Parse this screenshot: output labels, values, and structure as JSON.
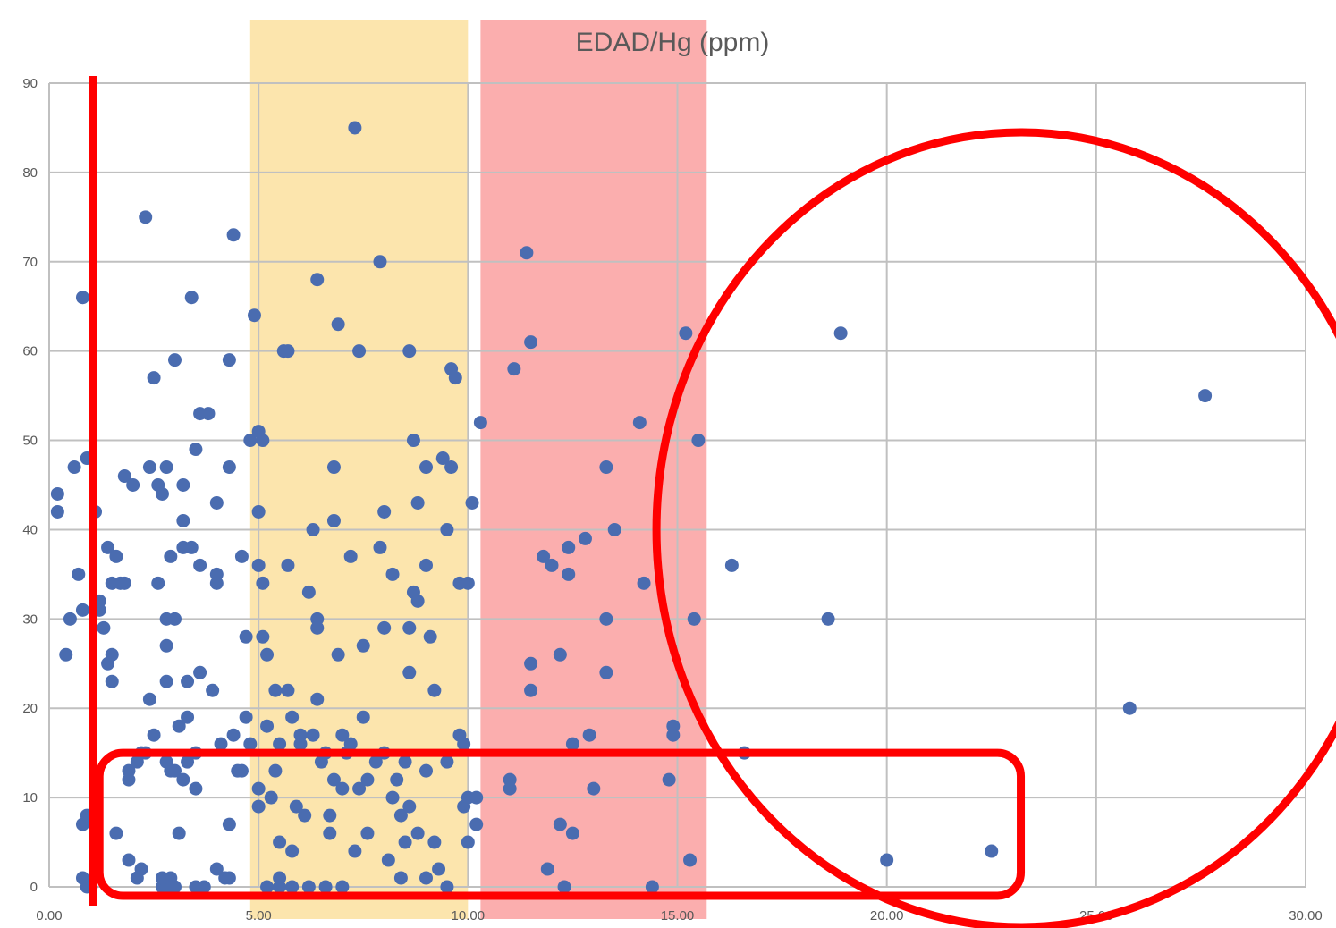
{
  "chart_data": {
    "type": "scatter",
    "title": "EDAD/Hg (ppm)",
    "xlabel": "",
    "ylabel": "",
    "xlim": [
      0,
      30
    ],
    "ylim": [
      0,
      90
    ],
    "x_ticks": [
      "0.00",
      "5.00",
      "10.00",
      "15.00",
      "20.00",
      "25.00",
      "30.00"
    ],
    "y_ticks": [
      "0",
      "10",
      "20",
      "30",
      "40",
      "50",
      "60",
      "70",
      "80",
      "90"
    ],
    "grid": true,
    "legend": "none",
    "colors": {
      "points": "#4a6cb0",
      "grid": "#c0c0c0",
      "band_5_10": "#fce5ad",
      "band_10_15": "#fbaeae",
      "annotation": "#ff0000"
    },
    "bands": [
      {
        "x_range": [
          4.8,
          10.0
        ],
        "color": "#fce5ad"
      },
      {
        "x_range": [
          10.3,
          15.7
        ],
        "color": "#fbaeae"
      }
    ],
    "annotations": [
      {
        "type": "vline",
        "x": 1.05
      },
      {
        "type": "rounded-rect",
        "x_range": [
          1.2,
          23.2
        ],
        "y_range": [
          -1,
          15
        ]
      },
      {
        "type": "ellipse",
        "x_center": 23.2,
        "y_center": 40,
        "x_radius": 8.7,
        "y_radius": 44.5
      }
    ],
    "series": [
      {
        "points": [
          [
            0.2,
            44
          ],
          [
            0.2,
            42
          ],
          [
            0.5,
            30
          ],
          [
            0.4,
            26
          ],
          [
            0.6,
            47
          ],
          [
            0.7,
            35
          ],
          [
            0.8,
            31
          ],
          [
            0.8,
            66
          ],
          [
            0.9,
            48
          ],
          [
            0.9,
            8
          ],
          [
            0.8,
            7
          ],
          [
            0.8,
            1
          ],
          [
            0.9,
            0
          ],
          [
            1.0,
            0
          ],
          [
            1.1,
            42
          ],
          [
            1.2,
            31
          ],
          [
            1.2,
            32
          ],
          [
            1.3,
            29
          ],
          [
            1.4,
            25
          ],
          [
            1.4,
            38
          ],
          [
            1.5,
            34
          ],
          [
            1.5,
            26
          ],
          [
            1.5,
            23
          ],
          [
            1.6,
            37
          ],
          [
            1.6,
            6
          ],
          [
            1.7,
            34
          ],
          [
            1.8,
            46
          ],
          [
            1.8,
            34
          ],
          [
            1.9,
            13
          ],
          [
            1.9,
            12
          ],
          [
            1.9,
            3
          ],
          [
            2.0,
            45
          ],
          [
            2.1,
            14
          ],
          [
            2.1,
            1
          ],
          [
            2.2,
            2
          ],
          [
            2.3,
            75
          ],
          [
            2.3,
            15
          ],
          [
            2.4,
            21
          ],
          [
            2.4,
            47
          ],
          [
            2.5,
            57
          ],
          [
            2.6,
            45
          ],
          [
            2.6,
            34
          ],
          [
            2.7,
            44
          ],
          [
            2.7,
            0
          ],
          [
            2.8,
            47
          ],
          [
            2.8,
            30
          ],
          [
            2.8,
            27
          ],
          [
            2.8,
            23
          ],
          [
            2.8,
            14
          ],
          [
            2.9,
            37
          ],
          [
            2.9,
            1
          ],
          [
            3.0,
            59
          ],
          [
            3.0,
            30
          ],
          [
            3.1,
            18
          ],
          [
            3.1,
            6
          ],
          [
            3.2,
            45
          ],
          [
            3.2,
            41
          ],
          [
            3.2,
            38
          ],
          [
            3.3,
            23
          ],
          [
            3.3,
            19
          ],
          [
            3.4,
            66
          ],
          [
            3.4,
            38
          ],
          [
            3.5,
            49
          ],
          [
            3.5,
            11
          ],
          [
            3.6,
            53
          ],
          [
            3.6,
            36
          ],
          [
            3.6,
            24
          ],
          [
            3.8,
            53
          ],
          [
            3.9,
            22
          ],
          [
            4.0,
            35
          ],
          [
            4.0,
            34
          ],
          [
            4.0,
            43
          ],
          [
            4.1,
            16
          ],
          [
            4.2,
            1
          ],
          [
            4.3,
            59
          ],
          [
            4.3,
            47
          ],
          [
            4.3,
            7
          ],
          [
            4.4,
            73
          ],
          [
            4.4,
            17
          ],
          [
            4.5,
            13
          ],
          [
            4.6,
            37
          ],
          [
            4.7,
            28
          ],
          [
            4.8,
            16
          ],
          [
            4.8,
            50
          ],
          [
            3.5,
            15
          ],
          [
            2.5,
            17
          ],
          [
            3.0,
            13
          ],
          [
            3.3,
            14
          ],
          [
            3.7,
            0
          ],
          [
            3.5,
            0
          ],
          [
            4.0,
            2
          ],
          [
            4.7,
            19
          ],
          [
            3.2,
            12
          ],
          [
            2.8,
            0
          ],
          [
            3.0,
            0
          ],
          [
            2.7,
            1
          ],
          [
            4.6,
            13
          ],
          [
            2.9,
            13
          ],
          [
            4.3,
            1
          ],
          [
            2.2,
            15
          ],
          [
            4.9,
            64
          ],
          [
            5.0,
            51
          ],
          [
            5.0,
            42
          ],
          [
            5.0,
            36
          ],
          [
            5.1,
            50
          ],
          [
            5.1,
            34
          ],
          [
            5.1,
            28
          ],
          [
            5.2,
            26
          ],
          [
            5.2,
            18
          ],
          [
            5.3,
            10
          ],
          [
            5.4,
            22
          ],
          [
            5.4,
            13
          ],
          [
            5.5,
            5
          ],
          [
            5.5,
            0
          ],
          [
            5.6,
            60
          ],
          [
            5.7,
            60
          ],
          [
            5.7,
            36
          ],
          [
            5.7,
            22
          ],
          [
            5.8,
            19
          ],
          [
            5.9,
            9
          ],
          [
            6.0,
            17
          ],
          [
            6.1,
            8
          ],
          [
            6.2,
            33
          ],
          [
            6.3,
            40
          ],
          [
            6.3,
            17
          ],
          [
            6.4,
            68
          ],
          [
            6.4,
            30
          ],
          [
            6.4,
            29
          ],
          [
            6.4,
            21
          ],
          [
            6.6,
            15
          ],
          [
            6.7,
            8
          ],
          [
            6.7,
            6
          ],
          [
            6.8,
            47
          ],
          [
            6.8,
            41
          ],
          [
            6.9,
            63
          ],
          [
            6.9,
            26
          ],
          [
            7.0,
            17
          ],
          [
            7.1,
            15
          ],
          [
            7.2,
            37
          ],
          [
            7.3,
            85
          ],
          [
            7.3,
            4
          ],
          [
            7.4,
            60
          ],
          [
            7.4,
            11
          ],
          [
            7.5,
            27
          ],
          [
            7.5,
            19
          ],
          [
            7.6,
            6
          ],
          [
            7.8,
            14
          ],
          [
            7.9,
            70
          ],
          [
            7.9,
            38
          ],
          [
            8.0,
            42
          ],
          [
            8.0,
            29
          ],
          [
            8.1,
            3
          ],
          [
            8.2,
            35
          ],
          [
            8.2,
            10
          ],
          [
            8.3,
            12
          ],
          [
            8.4,
            8
          ],
          [
            8.5,
            14
          ],
          [
            8.6,
            60
          ],
          [
            8.6,
            29
          ],
          [
            8.6,
            24
          ],
          [
            8.6,
            9
          ],
          [
            8.7,
            50
          ],
          [
            8.7,
            33
          ],
          [
            8.8,
            43
          ],
          [
            8.8,
            32
          ],
          [
            8.8,
            6
          ],
          [
            9.0,
            47
          ],
          [
            9.0,
            36
          ],
          [
            9.0,
            13
          ],
          [
            9.1,
            28
          ],
          [
            9.2,
            22
          ],
          [
            9.3,
            2
          ],
          [
            9.4,
            48
          ],
          [
            9.5,
            40
          ],
          [
            9.5,
            14
          ],
          [
            9.6,
            58
          ],
          [
            9.6,
            47
          ],
          [
            9.7,
            57
          ],
          [
            9.8,
            34
          ],
          [
            9.8,
            17
          ],
          [
            9.9,
            16
          ],
          [
            9.9,
            9
          ],
          [
            10.0,
            34
          ],
          [
            10.0,
            10
          ],
          [
            10.1,
            43
          ],
          [
            10.2,
            10
          ],
          [
            10.2,
            7
          ],
          [
            10.3,
            52
          ],
          [
            5.0,
            9
          ],
          [
            5.2,
            0
          ],
          [
            5.5,
            1
          ],
          [
            6.2,
            0
          ],
          [
            7.0,
            0
          ],
          [
            5.8,
            0
          ],
          [
            9.2,
            5
          ],
          [
            6.8,
            12
          ],
          [
            7.6,
            12
          ],
          [
            9.0,
            1
          ],
          [
            8.4,
            1
          ],
          [
            5.0,
            11
          ],
          [
            6.6,
            0
          ],
          [
            7.2,
            16
          ],
          [
            8.0,
            15
          ],
          [
            9.5,
            0
          ],
          [
            6.0,
            16
          ],
          [
            5.5,
            16
          ],
          [
            10.0,
            5
          ],
          [
            5.8,
            4
          ],
          [
            8.5,
            5
          ],
          [
            7.0,
            11
          ],
          [
            6.5,
            14
          ],
          [
            11.0,
            12
          ],
          [
            11.0,
            11
          ],
          [
            11.1,
            58
          ],
          [
            11.4,
            71
          ],
          [
            11.5,
            61
          ],
          [
            11.5,
            25
          ],
          [
            11.5,
            22
          ],
          [
            11.8,
            37
          ],
          [
            11.9,
            2
          ],
          [
            12.0,
            36
          ],
          [
            12.2,
            26
          ],
          [
            12.2,
            7
          ],
          [
            12.3,
            0
          ],
          [
            12.4,
            38
          ],
          [
            12.4,
            35
          ],
          [
            12.5,
            16
          ],
          [
            12.5,
            6
          ],
          [
            12.8,
            39
          ],
          [
            12.9,
            17
          ],
          [
            13.0,
            11
          ],
          [
            13.3,
            47
          ],
          [
            13.3,
            30
          ],
          [
            13.3,
            24
          ],
          [
            13.5,
            40
          ],
          [
            14.1,
            52
          ],
          [
            14.2,
            34
          ],
          [
            14.4,
            0
          ],
          [
            14.8,
            12
          ],
          [
            14.9,
            18
          ],
          [
            14.9,
            17
          ],
          [
            15.2,
            62
          ],
          [
            15.3,
            3
          ],
          [
            15.4,
            30
          ],
          [
            15.5,
            50
          ],
          [
            16.3,
            36
          ],
          [
            16.6,
            15
          ],
          [
            18.6,
            30
          ],
          [
            18.9,
            62
          ],
          [
            20.0,
            3
          ],
          [
            22.5,
            4
          ],
          [
            25.8,
            20
          ],
          [
            27.6,
            55
          ]
        ]
      }
    ]
  }
}
